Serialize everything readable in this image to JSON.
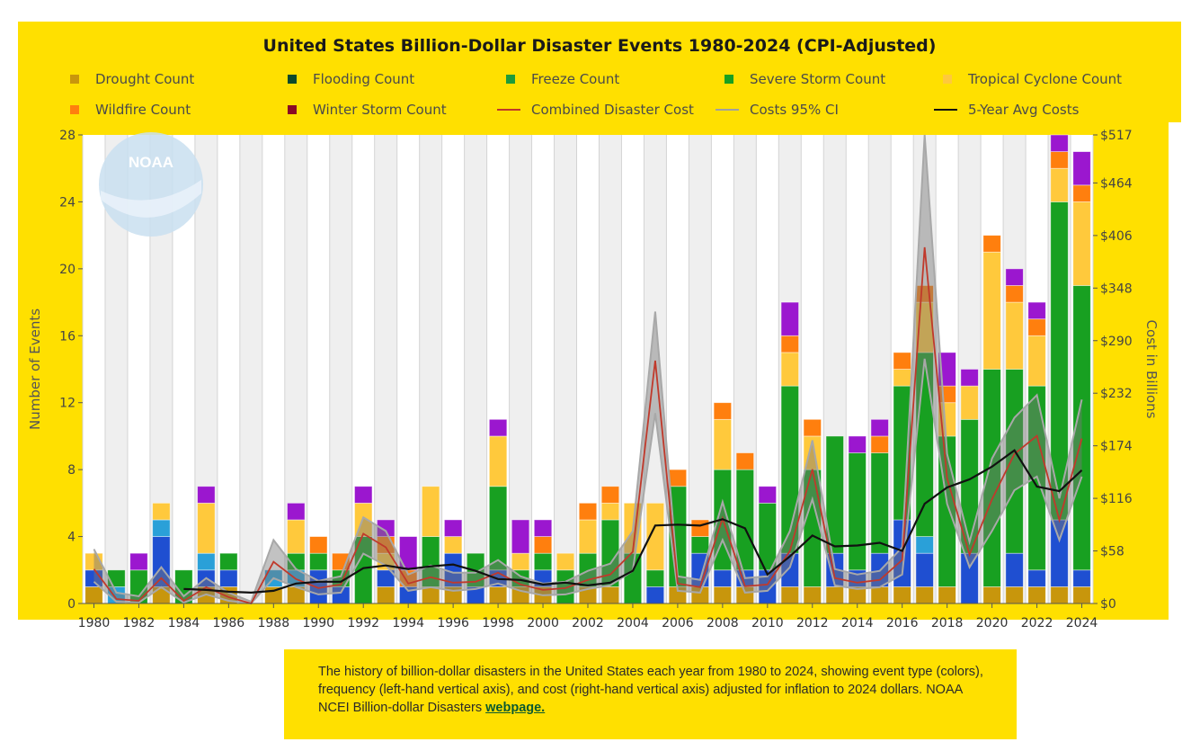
{
  "chart_data": {
    "type": "bar",
    "title": "United States Billion-Dollar Disaster Events 1980-2024 (CPI-Adjusted)",
    "ylabel": "Number of Events",
    "y2label": "Cost in Billions",
    "ylim": [
      0,
      28
    ],
    "yticks": [
      "0",
      "4",
      "8",
      "12",
      "16",
      "20",
      "24",
      "28"
    ],
    "y2lim": [
      0,
      517
    ],
    "y2ticks": [
      "$0",
      "$58",
      "$116",
      "$174",
      "$232",
      "$290",
      "$348",
      "$406",
      "$464",
      "$517"
    ],
    "xticks": [
      "1980",
      "1982",
      "1984",
      "1986",
      "1988",
      "1990",
      "1992",
      "1994",
      "1996",
      "1998",
      "2000",
      "2002",
      "2004",
      "2006",
      "2008",
      "2010",
      "2012",
      "2014",
      "2016",
      "2018",
      "2020",
      "2022",
      "2024"
    ],
    "legend_position": "top",
    "stacked": true,
    "categories": [
      1980,
      1981,
      1982,
      1983,
      1984,
      1985,
      1986,
      1987,
      1988,
      1989,
      1990,
      1991,
      1992,
      1993,
      1994,
      1995,
      1996,
      1997,
      1998,
      1999,
      2000,
      2001,
      2002,
      2003,
      2004,
      2005,
      2006,
      2007,
      2008,
      2009,
      2010,
      2011,
      2012,
      2013,
      2014,
      2015,
      2016,
      2017,
      2018,
      2019,
      2020,
      2021,
      2022,
      2023,
      2024
    ],
    "series": [
      {
        "name": "Drought Count",
        "color": "#c8960c",
        "values": [
          1,
          0,
          0,
          1,
          0,
          1,
          1,
          0,
          1,
          1,
          0,
          0,
          0,
          1,
          0,
          1,
          1,
          0,
          1,
          1,
          1,
          0,
          1,
          1,
          0,
          0,
          1,
          1,
          1,
          1,
          0,
          1,
          1,
          1,
          1,
          1,
          1,
          1,
          1,
          0,
          1,
          1,
          1,
          1,
          1
        ]
      },
      {
        "name": "Flooding Count",
        "color": "#1f4fd1",
        "values": [
          1,
          0,
          0,
          3,
          0,
          1,
          1,
          0,
          0,
          0,
          2,
          1,
          0,
          1,
          1,
          0,
          2,
          1,
          1,
          0,
          1,
          0,
          0,
          0,
          0,
          1,
          0,
          2,
          1,
          1,
          2,
          2,
          0,
          2,
          1,
          2,
          4,
          2,
          0,
          3,
          0,
          2,
          1,
          4,
          1
        ]
      },
      {
        "name": "Freeze Count",
        "color": "#2aa0d8",
        "values": [
          0,
          1,
          0,
          1,
          0,
          1,
          0,
          0,
          1,
          1,
          0,
          0,
          0,
          0,
          0,
          0,
          0,
          0,
          0,
          0,
          0,
          0,
          0,
          0,
          0,
          0,
          0,
          0,
          0,
          0,
          0,
          0,
          0,
          0,
          0,
          0,
          0,
          1,
          0,
          0,
          0,
          0,
          0,
          0,
          0
        ]
      },
      {
        "name": "Severe Storm Count",
        "color": "#18a021",
        "values": [
          0,
          1,
          2,
          0,
          2,
          0,
          1,
          0,
          0,
          1,
          1,
          1,
          4,
          0,
          0,
          3,
          0,
          2,
          5,
          1,
          1,
          2,
          2,
          4,
          3,
          1,
          6,
          1,
          6,
          6,
          4,
          10,
          7,
          7,
          7,
          6,
          8,
          11,
          9,
          8,
          13,
          11,
          11,
          19,
          17
        ]
      },
      {
        "name": "Tropical Cyclone Count",
        "color": "#ffc93c",
        "values": [
          1,
          0,
          0,
          1,
          0,
          3,
          0,
          0,
          0,
          2,
          0,
          0,
          2,
          1,
          0,
          3,
          1,
          0,
          3,
          1,
          0,
          1,
          2,
          1,
          3,
          4,
          0,
          0,
          3,
          0,
          0,
          2,
          2,
          0,
          0,
          0,
          1,
          3,
          2,
          2,
          7,
          4,
          3,
          2,
          5
        ]
      },
      {
        "name": "Wildfire Count",
        "color": "#ff7f0e",
        "values": [
          0,
          0,
          0,
          0,
          0,
          0,
          0,
          0,
          0,
          0,
          1,
          1,
          0,
          1,
          1,
          0,
          0,
          0,
          0,
          0,
          1,
          0,
          1,
          1,
          0,
          0,
          1,
          1,
          1,
          1,
          0,
          1,
          1,
          0,
          0,
          1,
          1,
          1,
          1,
          0,
          1,
          1,
          1,
          1,
          1
        ]
      },
      {
        "name": "Winter Storm Count",
        "color": "#9b17cf",
        "values": [
          0,
          0,
          1,
          0,
          0,
          1,
          0,
          0,
          0,
          1,
          0,
          0,
          1,
          1,
          2,
          0,
          1,
          0,
          1,
          2,
          1,
          0,
          0,
          0,
          0,
          0,
          0,
          0,
          0,
          0,
          1,
          2,
          0,
          0,
          1,
          1,
          0,
          0,
          2,
          1,
          0,
          1,
          1,
          1,
          2
        ]
      }
    ],
    "extra_series_colors": {
      "Flooding Count": "#0d4a2c",
      "Freeze Count": "#1f9b3a",
      "Winter Storm Count": "#8b0a25"
    },
    "lines": [
      {
        "name": "Combined Disaster Cost",
        "color": "#c0392b",
        "axis": "right",
        "values": [
          38,
          5,
          3,
          28,
          3,
          18,
          7,
          0,
          46,
          27,
          17,
          21,
          77,
          62,
          22,
          29,
          23,
          24,
          34,
          21,
          15,
          17,
          26,
          32,
          57,
          268,
          22,
          18,
          94,
          19,
          21,
          58,
          148,
          28,
          23,
          26,
          48,
          393,
          138,
          54,
          115,
          165,
          185,
          92,
          182
        ]
      },
      {
        "name": "Costs 95% CI",
        "color": "#b0b0b0",
        "axis": "right",
        "upper": [
          60,
          12,
          8,
          40,
          8,
          28,
          12,
          2,
          70,
          38,
          25,
          30,
          95,
          80,
          32,
          42,
          34,
          34,
          48,
          30,
          22,
          24,
          36,
          44,
          80,
          322,
          30,
          26,
          112,
          28,
          30,
          80,
          180,
          38,
          32,
          36,
          62,
          517,
          165,
          68,
          160,
          205,
          230,
          116,
          225
        ],
        "lower": [
          24,
          2,
          1,
          18,
          1,
          10,
          3,
          0,
          28,
          18,
          10,
          12,
          55,
          42,
          14,
          18,
          14,
          16,
          22,
          14,
          9,
          10,
          16,
          20,
          36,
          210,
          14,
          12,
          70,
          12,
          14,
          40,
          115,
          20,
          16,
          18,
          32,
          270,
          110,
          40,
          80,
          125,
          140,
          70,
          140
        ]
      },
      {
        "name": "5-Year Avg Costs",
        "color": "#111111",
        "axis": "right",
        "values": [
          null,
          null,
          null,
          null,
          16,
          15,
          13,
          12,
          14,
          22,
          24,
          24,
          39,
          42,
          38,
          41,
          43,
          36,
          27,
          26,
          21,
          23,
          20,
          23,
          36,
          86,
          87,
          86,
          93,
          83,
          32,
          52,
          75,
          63,
          64,
          67,
          58,
          110,
          128,
          137,
          151,
          169,
          129,
          124,
          147
        ]
      }
    ]
  },
  "legend": [
    {
      "label": "Drought Count",
      "kind": "box",
      "color": "#c8960c"
    },
    {
      "label": "Flooding Count",
      "kind": "box",
      "color": "#0d4a2c"
    },
    {
      "label": "Freeze Count",
      "kind": "box",
      "color": "#1f9b3a"
    },
    {
      "label": "Severe Storm Count",
      "kind": "box",
      "color": "#18a021"
    },
    {
      "label": "Tropical Cyclone Count",
      "kind": "box",
      "color": "#ffc93c"
    },
    {
      "label": "Wildfire Count",
      "kind": "box",
      "color": "#ff7f0e"
    },
    {
      "label": "Winter Storm Count",
      "kind": "box",
      "color": "#8b0a25"
    },
    {
      "label": "Combined Disaster Cost",
      "kind": "line",
      "color": "#c0392b"
    },
    {
      "label": "Costs 95% CI",
      "kind": "line",
      "color": "#a0a0a0"
    },
    {
      "label": "5-Year Avg Costs",
      "kind": "line",
      "color": "#111111"
    }
  ],
  "logo_text": "NOAA",
  "caption": {
    "text": "The history of billion-dollar disasters in the United States each year from 1980 to 2024, showing event type (colors), frequency (left-hand vertical axis), and cost (right-hand vertical axis) adjusted for inflation to 2024 dollars. NOAA NCEI Billion-dollar Disasters ",
    "link": "webpage."
  }
}
